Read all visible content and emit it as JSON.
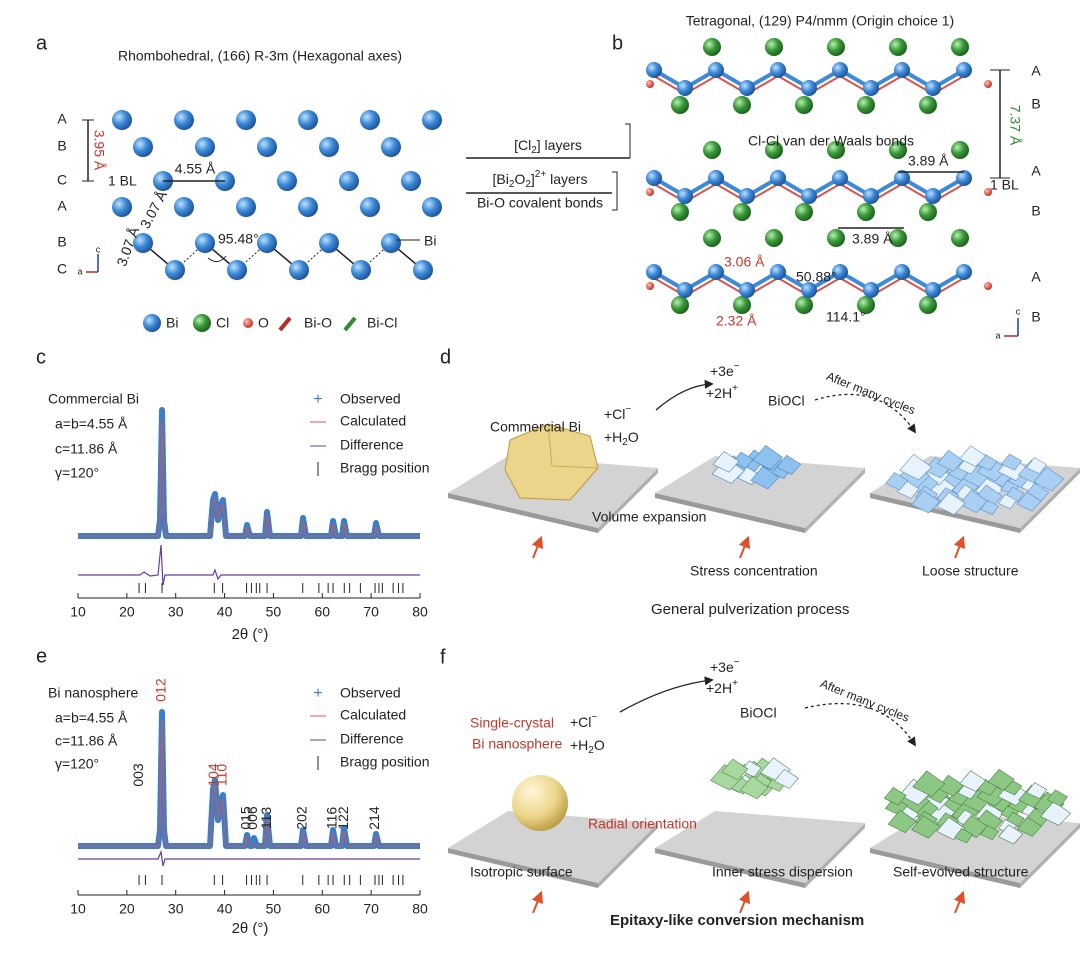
{
  "panels": {
    "a": {
      "label": "a",
      "title": "Rhombohedral, (166) R-3m (Hexagonal axes)",
      "stacking": [
        "A",
        "B",
        "C",
        "A",
        "B",
        "C"
      ],
      "layer_spacing": "3.95 Å",
      "bl": "1 BL",
      "lattice": "4.55 Å",
      "bond1": "3.07 Å",
      "bond2": "3.07 Å",
      "angle": "95.48°",
      "atom": "Bi",
      "axes": [
        "c",
        "a"
      ],
      "legend": [
        "Bi",
        "Cl",
        "O",
        "Bi-O",
        "Bi-Cl"
      ]
    },
    "layers": {
      "cl": {
        "pre": "[Cl",
        "sub": "2",
        "post": "] layers"
      },
      "bio": {
        "pre": "[Bi",
        "sub1": "2",
        "mid": "O",
        "sub2": "2",
        "post": "]",
        "sup": "2+",
        "tail": " layers"
      },
      "covalent": "Bi-O covalent bonds",
      "vdw": "Cl-Cl van der Waals bonds"
    },
    "b": {
      "label": "b",
      "title": "Tetragonal, (129) P4/nmm (Origin choice 1)",
      "stacking": [
        "A",
        "B",
        "A",
        "B",
        "A",
        "B"
      ],
      "layer_spacing": "7.37 Å",
      "bl": "1 BL",
      "lattice1": "3.89 Å",
      "lattice2": "3.89 Å",
      "bond1": "3.06 Å",
      "angle1": "50.88°",
      "bond2": "2.32 Å",
      "angle2": "114.1°",
      "axes": [
        "c",
        "a"
      ]
    },
    "c": {
      "label": "c",
      "sample": "Commercial Bi",
      "params": [
        "a=b=4.55 Å",
        "c=11.86 Å",
        "γ=120°"
      ],
      "legend": [
        "Observed",
        "Calculated",
        "Difference",
        "Bragg position"
      ],
      "xlabel": "2θ (°)",
      "xlim": [
        10,
        80
      ],
      "xticks": [
        10,
        20,
        30,
        40,
        50,
        60,
        70,
        80
      ],
      "bragg": [
        22.5,
        23.8,
        27.2,
        37.9,
        39.6,
        44.5,
        45.5,
        46.5,
        47.2,
        48.7,
        56.0,
        59.3,
        61.2,
        62.2,
        64.5,
        65.6,
        67.8,
        70.8,
        71.6,
        72.3,
        74.5,
        75.6,
        76.5
      ]
    },
    "d": {
      "label": "d",
      "start": "Commercial Bi",
      "reagent1": {
        "pre": "+Cl",
        "sup": "−"
      },
      "reagent2": {
        "pre": "+H",
        "sub": "2",
        "post": "O"
      },
      "electron": {
        "pre": "+3e",
        "sup": "−"
      },
      "proton": {
        "pre": "+2H",
        "sup": "+"
      },
      "product": "BiOCl",
      "cycles": "After many cycles",
      "expansion": "Volume expansion",
      "stress": "Stress concentration",
      "loose": "Loose structure",
      "caption": "General pulverization process"
    },
    "e": {
      "label": "e",
      "sample": "Bi nanosphere",
      "params": [
        "a=b=4.55 Å",
        "c=11.86 Å",
        "γ=120°"
      ],
      "legend": [
        "Observed",
        "Calculated",
        "Difference",
        "Bragg position"
      ],
      "xlabel": "2θ (°)",
      "xlim": [
        10,
        80
      ],
      "xticks": [
        10,
        20,
        30,
        40,
        50,
        60,
        70,
        80
      ],
      "bragg": [
        22.5,
        23.8,
        27.2,
        37.9,
        39.6,
        44.5,
        45.5,
        46.5,
        47.2,
        48.7,
        56.0,
        59.3,
        61.2,
        62.2,
        64.5,
        65.6,
        67.8,
        70.8,
        71.6,
        72.3,
        74.5,
        75.6,
        76.5
      ],
      "peaks": [
        {
          "label": "003",
          "x": 22.5,
          "color": "#222"
        },
        {
          "label": "012",
          "x": 27.2,
          "color": "#c0392b"
        },
        {
          "label": "104",
          "x": 37.9,
          "color": "#c0392b"
        },
        {
          "label": "110",
          "x": 39.6,
          "color": "#c0392b"
        },
        {
          "label": "015",
          "x": 44.5,
          "color": "#222"
        },
        {
          "label": "006",
          "x": 45.9,
          "color": "#222"
        },
        {
          "label": "113",
          "x": 48.7,
          "color": "#222"
        },
        {
          "label": "202",
          "x": 56.0,
          "color": "#222"
        },
        {
          "label": "116",
          "x": 62.2,
          "color": "#222"
        },
        {
          "label": "122",
          "x": 64.5,
          "color": "#222"
        },
        {
          "label": "214",
          "x": 70.8,
          "color": "#222"
        }
      ]
    },
    "f": {
      "label": "f",
      "start1": "Single-crystal",
      "start2": "Bi nanosphere",
      "reagent1": {
        "pre": "+Cl",
        "sup": "−"
      },
      "reagent2": {
        "pre": "+H",
        "sub": "2",
        "post": "O"
      },
      "electron": {
        "pre": "+3e",
        "sup": "−"
      },
      "proton": {
        "pre": "+2H",
        "sup": "+"
      },
      "product": "BiOCl",
      "cycles": "After many cycles",
      "radial": "Radial orientation",
      "isotropic": "Isotropic surface",
      "inner": "Inner stress dispersion",
      "evolved": "Self-evolved structure",
      "caption": "Epitaxy-like conversion mechanism"
    }
  }
}
